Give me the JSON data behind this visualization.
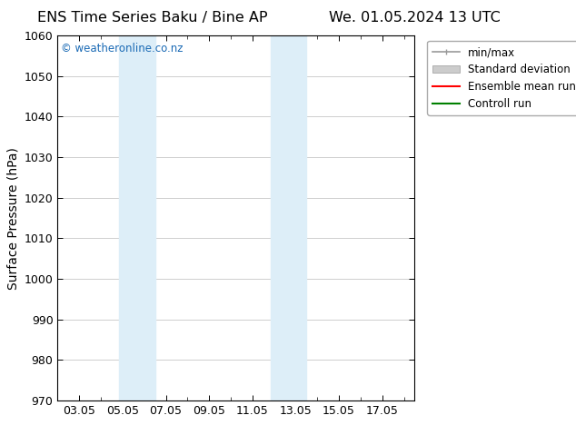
{
  "title_left": "ENS Time Series Baku / Bine AP",
  "title_right": "We. 01.05.2024 13 UTC",
  "ylabel": "Surface Pressure (hPa)",
  "ylim": [
    970,
    1060
  ],
  "yticks": [
    970,
    980,
    990,
    1000,
    1010,
    1020,
    1030,
    1040,
    1050,
    1060
  ],
  "xlim": [
    1.0,
    17.5
  ],
  "xtick_labels": [
    "03.05",
    "05.05",
    "07.05",
    "09.05",
    "11.05",
    "13.05",
    "15.05",
    "17.05"
  ],
  "xtick_positions": [
    2,
    4,
    6,
    8,
    10,
    12,
    14,
    16
  ],
  "shaded_bands": [
    {
      "x_start": 3.83,
      "x_end": 5.5,
      "color": "#ddeef8"
    },
    {
      "x_start": 10.83,
      "x_end": 12.5,
      "color": "#ddeef8"
    }
  ],
  "watermark_text": "© weatheronline.co.nz",
  "watermark_color": "#1a6ab5",
  "background_color": "#ffffff",
  "plot_bg_color": "#ffffff",
  "grid_color": "#c8c8c8",
  "legend_items": [
    {
      "label": "min/max",
      "color": "#999999",
      "lw": 1.2,
      "style": "minmax"
    },
    {
      "label": "Standard deviation",
      "color": "#cccccc",
      "lw": 8,
      "style": "band"
    },
    {
      "label": "Ensemble mean run",
      "color": "#ff0000",
      "lw": 1.5,
      "style": "line"
    },
    {
      "label": "Controll run",
      "color": "#008000",
      "lw": 1.5,
      "style": "line"
    }
  ],
  "title_fontsize": 11.5,
  "axis_label_fontsize": 10,
  "tick_fontsize": 9,
  "legend_fontsize": 8.5
}
